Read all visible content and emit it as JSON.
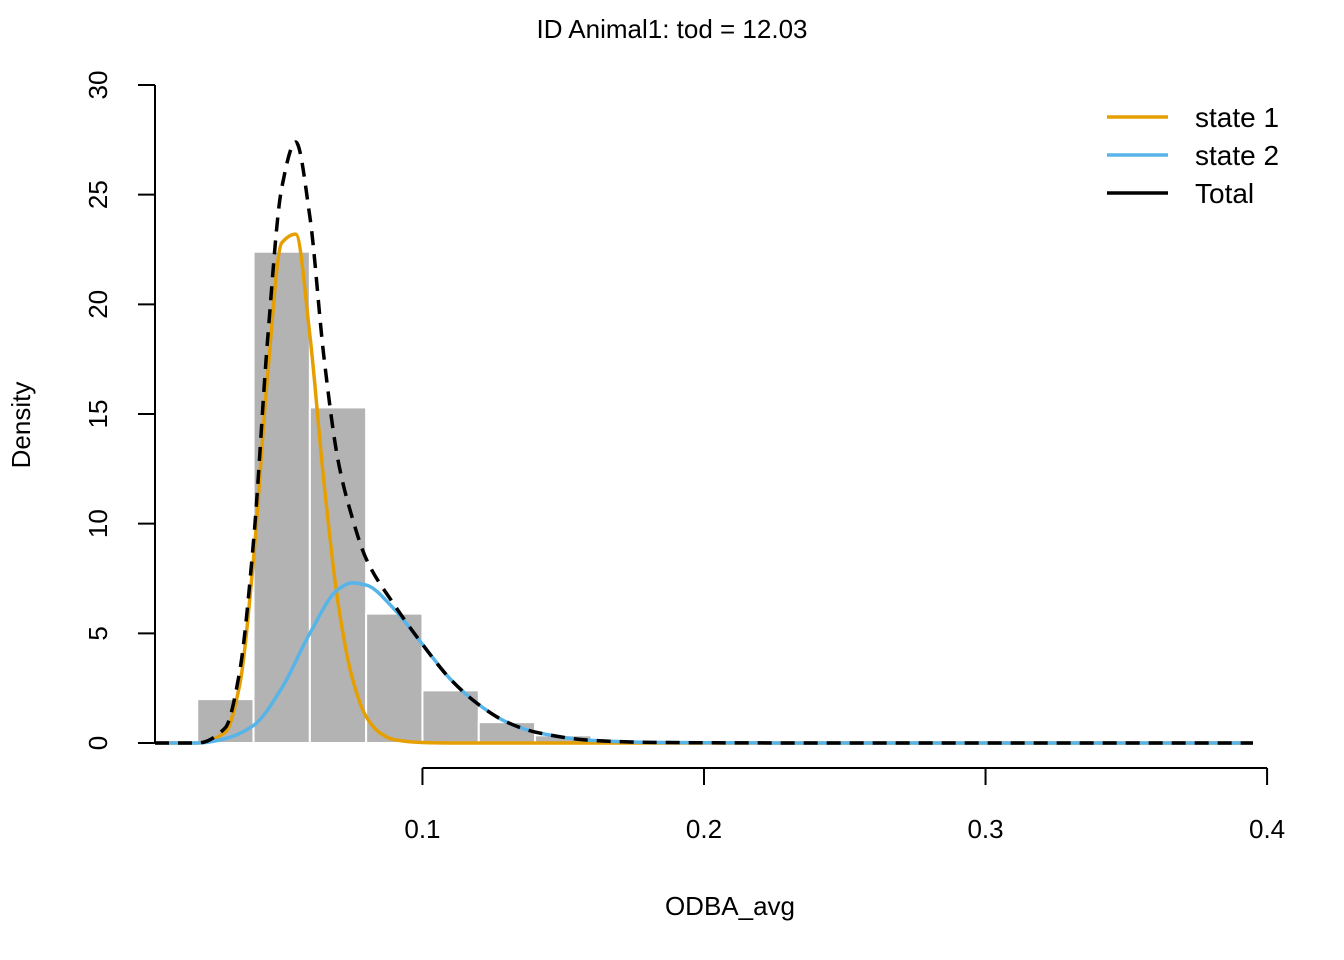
{
  "chart_data": {
    "type": "histogram",
    "title": "ID Animal1: tod = 12.03",
    "xlabel": "ODBA_avg",
    "ylabel": "Density",
    "xlim": [
      0.005,
      0.395
    ],
    "ylim": [
      0,
      30
    ],
    "x_ticks": [
      0.1,
      0.2,
      0.3,
      0.4
    ],
    "x_tick_labels": [
      "0.1",
      "0.2",
      "0.3",
      "0.4"
    ],
    "y_ticks": [
      0,
      5,
      10,
      15,
      20,
      25,
      30
    ],
    "y_tick_labels": [
      "0",
      "5",
      "10",
      "15",
      "20",
      "25",
      "30"
    ],
    "grid": false,
    "legend_position": "top-right",
    "histogram": {
      "color": "#b3b3b3",
      "bins": [
        {
          "x0": 0.02,
          "x1": 0.04,
          "density": 2.0
        },
        {
          "x0": 0.04,
          "x1": 0.06,
          "density": 22.4
        },
        {
          "x0": 0.06,
          "x1": 0.08,
          "density": 15.3
        },
        {
          "x0": 0.08,
          "x1": 0.1,
          "density": 5.9
        },
        {
          "x0": 0.1,
          "x1": 0.12,
          "density": 2.4
        },
        {
          "x0": 0.12,
          "x1": 0.14,
          "density": 0.95
        },
        {
          "x0": 0.14,
          "x1": 0.16,
          "density": 0.35
        },
        {
          "x0": 0.16,
          "x1": 0.18,
          "density": 0.1
        },
        {
          "x0": 0.18,
          "x1": 0.2,
          "density": 0.04
        }
      ]
    },
    "series": [
      {
        "name": "state 1",
        "color": "#E69F00",
        "style": "solid",
        "x": [
          0.005,
          0.02,
          0.03,
          0.035,
          0.04,
          0.045,
          0.05,
          0.055,
          0.06,
          0.065,
          0.07,
          0.075,
          0.08,
          0.085,
          0.09,
          0.1,
          0.11,
          0.15,
          0.395
        ],
        "y": [
          0,
          0,
          0.5,
          2.6,
          8.4,
          16.8,
          22.8,
          23.2,
          18.6,
          11.9,
          6.4,
          3.0,
          1.2,
          0.45,
          0.15,
          0.02,
          0,
          0,
          0
        ]
      },
      {
        "name": "state 2",
        "color": "#56B4E9",
        "style": "solid",
        "x": [
          0.005,
          0.02,
          0.03,
          0.04,
          0.05,
          0.06,
          0.07,
          0.075,
          0.08,
          0.09,
          0.1,
          0.11,
          0.12,
          0.13,
          0.14,
          0.16,
          0.18,
          0.2,
          0.25,
          0.395
        ],
        "y": [
          0,
          0,
          0.2,
          0.8,
          2.5,
          5.0,
          7.0,
          7.3,
          7.2,
          6.1,
          4.5,
          2.9,
          1.75,
          0.95,
          0.5,
          0.12,
          0.03,
          0.01,
          0,
          0
        ]
      },
      {
        "name": "Total",
        "color": "#000000",
        "style": "dashed",
        "x": [
          0.005,
          0.02,
          0.03,
          0.035,
          0.04,
          0.045,
          0.05,
          0.055,
          0.06,
          0.065,
          0.07,
          0.075,
          0.08,
          0.09,
          0.1,
          0.11,
          0.12,
          0.13,
          0.14,
          0.16,
          0.18,
          0.2,
          0.25,
          0.3,
          0.395
        ],
        "y": [
          0,
          0,
          0.7,
          3.2,
          9.2,
          18.4,
          25.3,
          27.4,
          24.0,
          17.6,
          12.9,
          10.3,
          8.4,
          6.3,
          4.5,
          2.9,
          1.75,
          0.95,
          0.5,
          0.12,
          0.03,
          0.01,
          0,
          0,
          0
        ]
      }
    ]
  }
}
